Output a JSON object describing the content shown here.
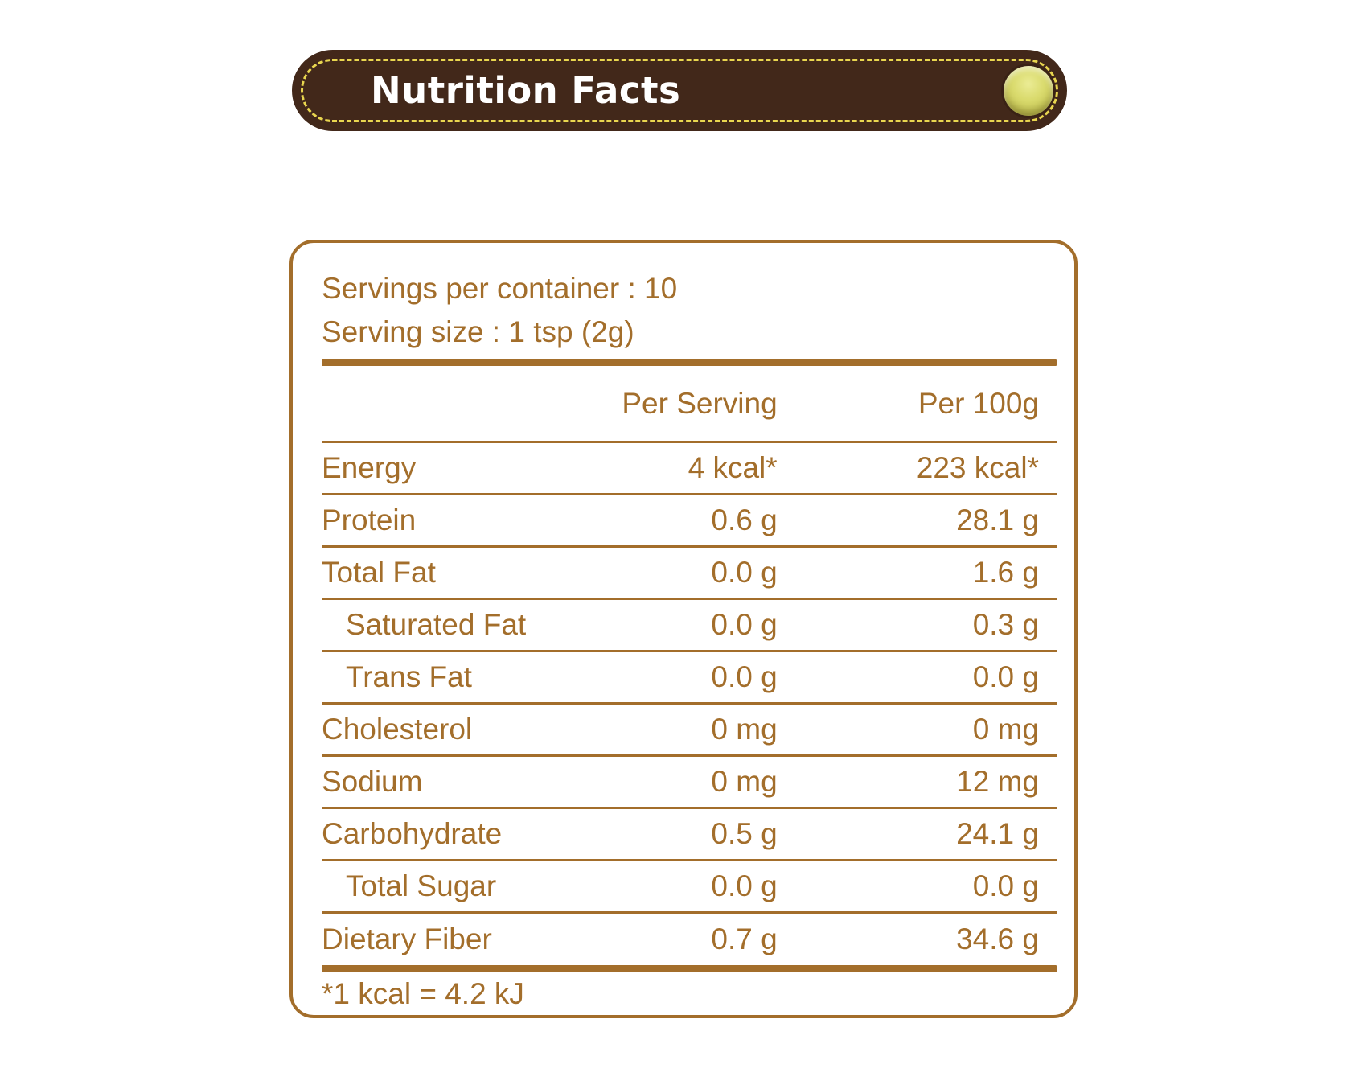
{
  "header": {
    "title": "Nutrition Facts"
  },
  "serving_info": {
    "servings_per_container": "Servings per container : 10",
    "serving_size": "Serving size : 1 tsp (2g)"
  },
  "table": {
    "col_headers": [
      "Per Serving",
      "Per 100g"
    ],
    "rows": [
      {
        "label": "Energy",
        "per_serving": "4 kcal*",
        "per_100g": "223 kcal*"
      },
      {
        "label": "Protein",
        "per_serving": "0.6 g",
        "per_100g": "28.1 g"
      },
      {
        "label": "Total Fat",
        "per_serving": "0.0 g",
        "per_100g": "1.6 g"
      },
      {
        "label": "Saturated Fat",
        "per_serving": "0.0 g",
        "per_100g": "0.3 g"
      },
      {
        "label": "Trans Fat",
        "per_serving": "0.0 g",
        "per_100g": "0.0 g"
      },
      {
        "label": "Cholesterol",
        "per_serving": "0 mg",
        "per_100g": "0 mg"
      },
      {
        "label": "Sodium",
        "per_serving": "0 mg",
        "per_100g": "12 mg"
      },
      {
        "label": "Carbohydrate",
        "per_serving": "0.5 g",
        "per_100g": "24.1 g"
      },
      {
        "label": "Total Sugar",
        "per_serving": "0.0 g",
        "per_100g": "0.0 g"
      },
      {
        "label": "Dietary Fiber",
        "per_serving": "0.7 g",
        "per_100g": "34.6 g"
      }
    ]
  },
  "footnote": "*1 kcal = 4.2 kJ",
  "colors": {
    "accent_brown": "#A36E2B",
    "banner_brown": "#42281A",
    "stitch_yellow": "#E9D64F",
    "button_yellow": "#D2D363",
    "title_white": "#FFFFFF"
  }
}
